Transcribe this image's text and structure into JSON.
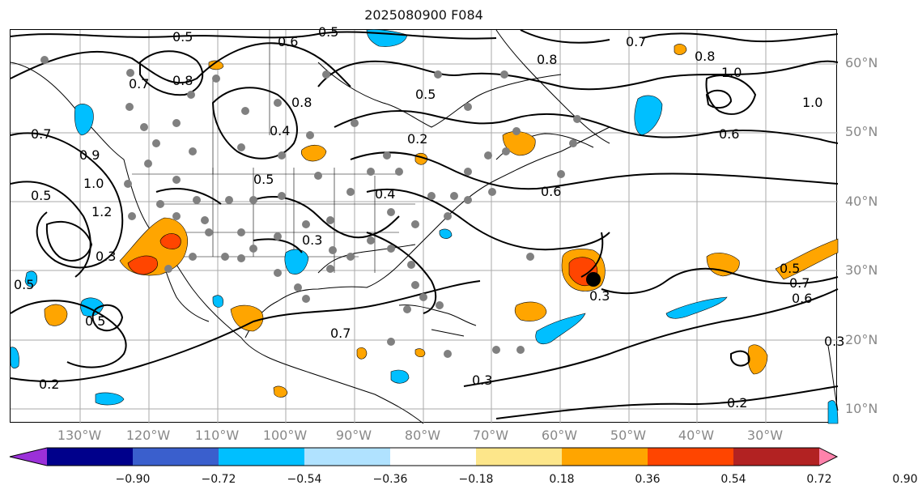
{
  "title": "2025080900 F084",
  "lat_labels": [
    "60°N",
    "50°N",
    "40°N",
    "30°N",
    "20°N",
    "10°N"
  ],
  "lon_labels": [
    "130°W",
    "120°W",
    "110°W",
    "100°W",
    "90°W",
    "80°W",
    "70°W",
    "60°W",
    "50°W",
    "40°W",
    "30°W"
  ],
  "contour_labels": [
    "0.5",
    "0.6",
    "0.5",
    "0.8",
    "0.8",
    "1.0",
    "1.0",
    "0.7",
    "0.8",
    "0.7",
    "0.9",
    "0.4",
    "0.8",
    "0.5",
    "0.4",
    "0.6",
    "0.5",
    "0.6",
    "0.3",
    "0.3",
    "0.5",
    "0.7",
    "0.6",
    "0.7",
    "1.2",
    "1.0",
    "0.5",
    "0.5",
    "0.3",
    "0.7",
    "0.2",
    "0.3",
    "0.2",
    "0.3",
    "0.5",
    "0.2"
  ],
  "colorbar": {
    "ticks": [
      "−0.90",
      "−0.72",
      "−0.54",
      "−0.36",
      "−0.18",
      "0.18",
      "0.36",
      "0.54",
      "0.72",
      "0.90"
    ],
    "colors": [
      "#9b30d9",
      "#00008b",
      "#3a5fcd",
      "#00bfff",
      "#b0e2ff",
      "#ffffff",
      "#fde68a",
      "#ffa500",
      "#ff4500",
      "#b22222",
      "#ff82ab"
    ]
  },
  "colors": {
    "positive_fill_1": "#ffa500",
    "positive_fill_2": "#ff4500",
    "negative_fill_1": "#00bfff",
    "contour": "#000000",
    "station_dot": "#808080",
    "grid": "#aaaaaa"
  }
}
